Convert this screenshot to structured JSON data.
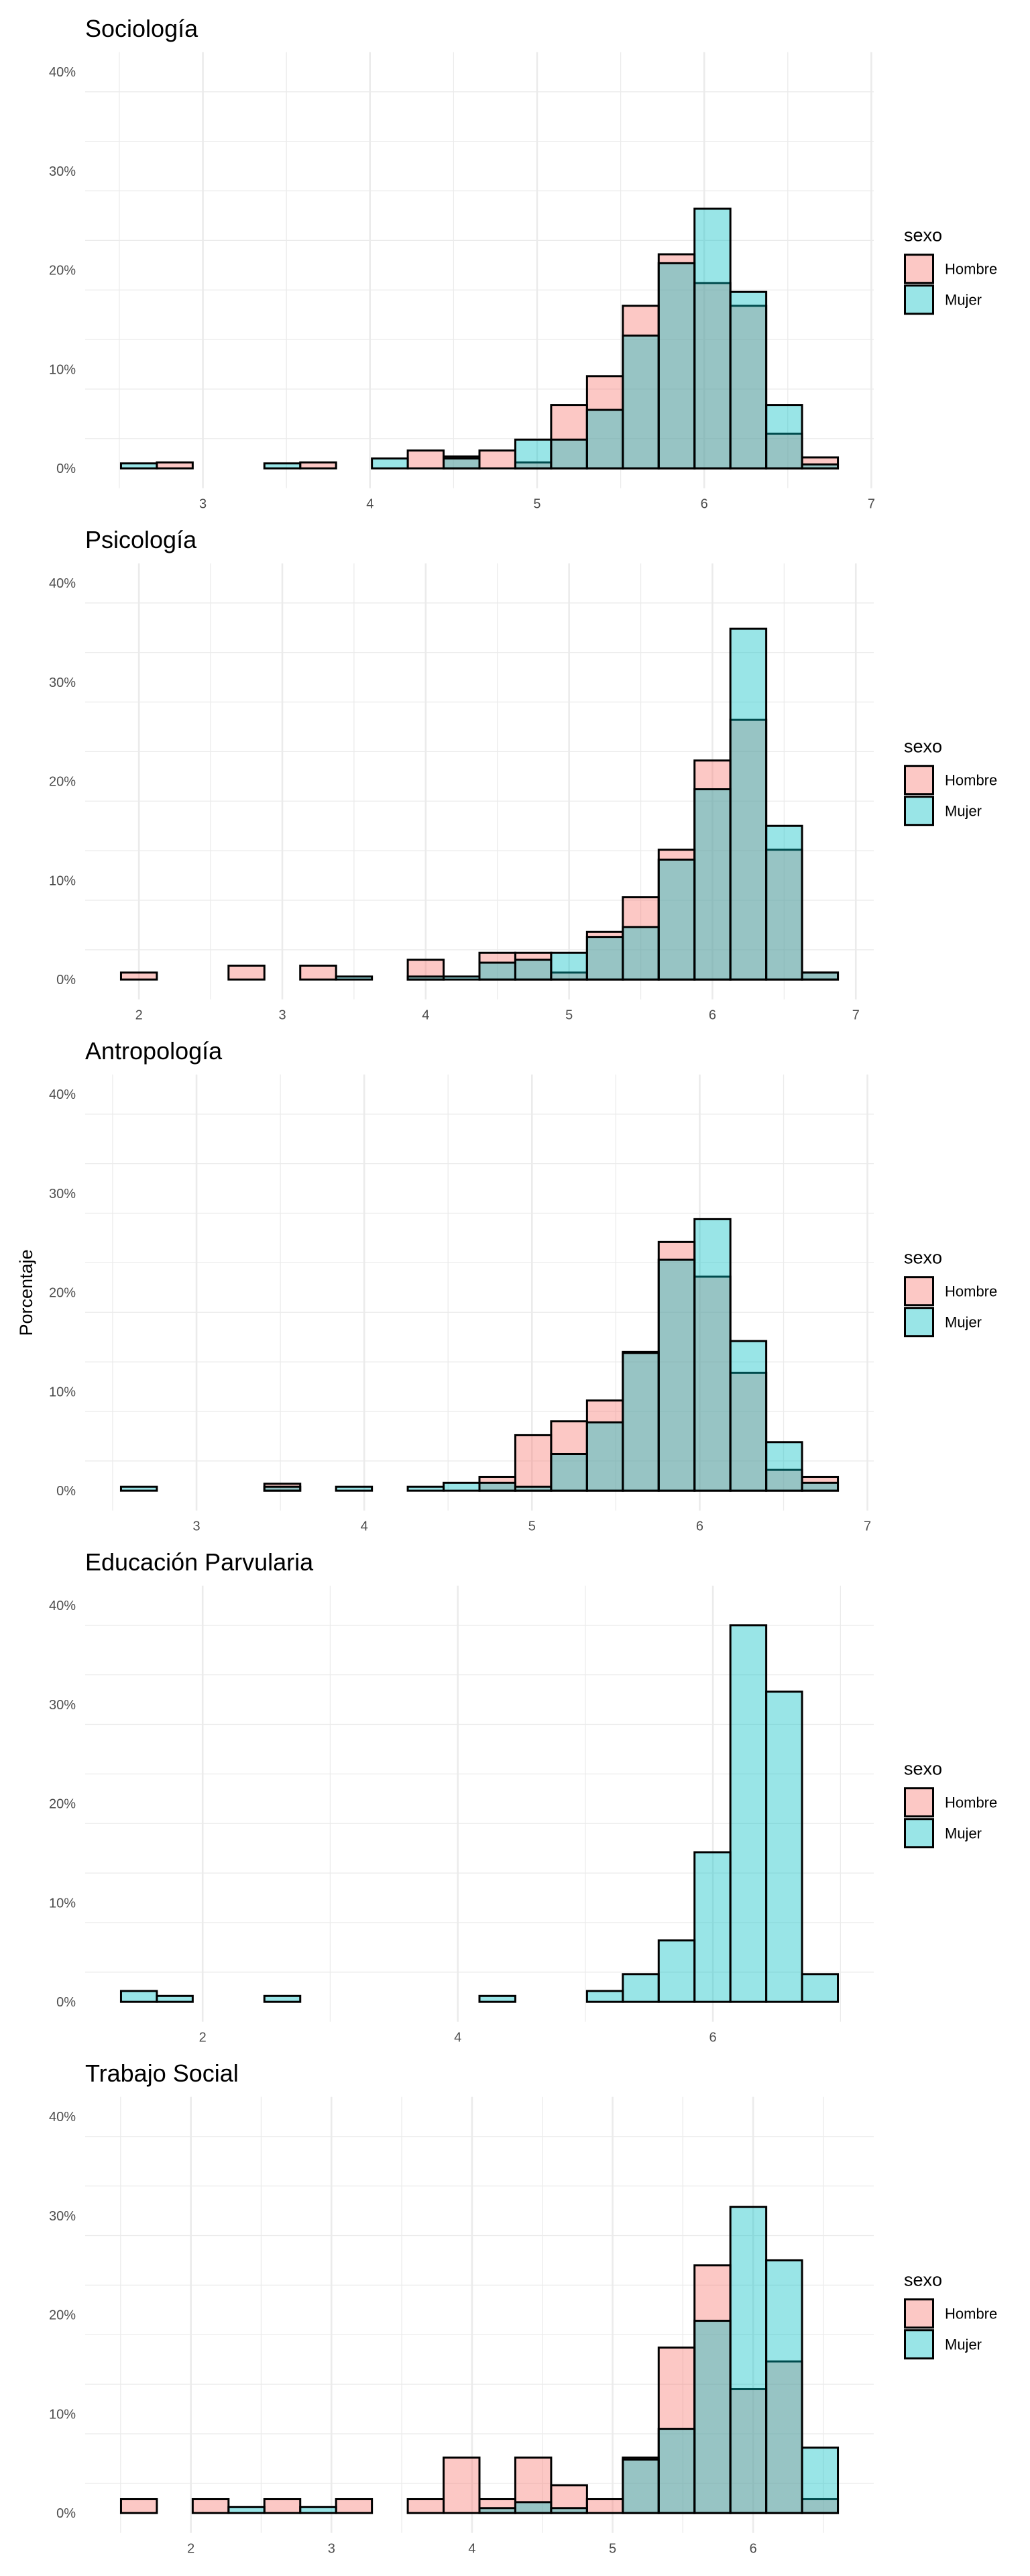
{
  "figure": {
    "ylabel": "Porcentaje"
  },
  "legend": {
    "title": "sexo",
    "items": [
      {
        "label": "Hombre",
        "color": "#F8766D",
        "alpha": 0.4
      },
      {
        "label": "Mujer",
        "color": "#00BFC4",
        "alpha": 0.4
      }
    ]
  },
  "chart_data": [
    {
      "type": "bar",
      "subtype": "overlapping histogram",
      "title": "Sociología",
      "xlabel": "",
      "ylabel": "Porcentaje",
      "bins": 20,
      "bin_start": 2.51,
      "bin_width": 0.2145,
      "x_ticks": [
        3,
        4,
        5,
        6,
        7
      ],
      "x_minor": [
        2.5,
        3.5,
        4.5,
        5.5,
        6.5
      ],
      "y_ticks": [
        0,
        10,
        20,
        30,
        40
      ],
      "y_tick_labels": [
        "0%",
        "10%",
        "20%",
        "30%",
        "40%"
      ],
      "ylim": [
        0,
        40
      ],
      "grid": true,
      "legend_position": "right",
      "series": [
        {
          "name": "Hombre",
          "values": [
            0,
            0.6,
            0,
            0,
            0,
            0.6,
            0,
            0,
            1.8,
            1.2,
            1.8,
            0.6,
            6.4,
            9.3,
            16.4,
            21.6,
            18.7,
            16.4,
            3.5,
            1.1
          ]
        },
        {
          "name": "Mujer",
          "values": [
            0.5,
            0,
            0,
            0,
            0.5,
            0,
            0,
            1.0,
            0,
            1.0,
            0,
            2.9,
            2.9,
            5.9,
            13.4,
            20.7,
            26.2,
            17.8,
            6.4,
            0.4
          ]
        }
      ]
    },
    {
      "type": "bar",
      "subtype": "overlapping histogram",
      "title": "Psicología",
      "xlabel": "",
      "ylabel": "Porcentaje",
      "bins": 20,
      "bin_start": 1.875,
      "bin_width": 0.25,
      "x_ticks": [
        2,
        3,
        4,
        5,
        6,
        7
      ],
      "x_minor": [
        2.5,
        3.5,
        4.5,
        5.5,
        6.5
      ],
      "y_ticks": [
        0,
        10,
        20,
        30,
        40
      ],
      "y_tick_labels": [
        "0%",
        "10%",
        "20%",
        "30%",
        "40%"
      ],
      "ylim": [
        0,
        40
      ],
      "grid": true,
      "legend_position": "right",
      "series": [
        {
          "name": "Hombre",
          "values": [
            0.7,
            0,
            0,
            1.4,
            0,
            1.4,
            0,
            0,
            2.0,
            0,
            2.7,
            2.7,
            0.7,
            4.8,
            8.3,
            13.1,
            22.1,
            26.2,
            13.1,
            0.7
          ]
        },
        {
          "name": "Mujer",
          "values": [
            0,
            0,
            0,
            0,
            0,
            0,
            0.3,
            0,
            0.3,
            0.3,
            1.7,
            2.0,
            2.7,
            4.3,
            5.3,
            12.1,
            19.2,
            35.4,
            15.5,
            0.7
          ]
        }
      ]
    },
    {
      "type": "bar",
      "subtype": "overlapping histogram",
      "title": "Antropología",
      "xlabel": "",
      "ylabel": "Porcentaje",
      "bins": 20,
      "bin_start": 2.55,
      "bin_width": 0.2137,
      "x_ticks": [
        3,
        4,
        5,
        6,
        7
      ],
      "x_minor": [
        2.5,
        3.5,
        4.5,
        5.5,
        6.5
      ],
      "y_ticks": [
        0,
        10,
        20,
        30,
        40
      ],
      "y_tick_labels": [
        "0%",
        "10%",
        "20%",
        "30%",
        "40%"
      ],
      "ylim": [
        0,
        40
      ],
      "grid": true,
      "legend_position": "right",
      "series": [
        {
          "name": "Hombre",
          "values": [
            0,
            0,
            0,
            0,
            0.7,
            0,
            0,
            0,
            0,
            0,
            1.4,
            5.6,
            7.0,
            9.1,
            14.0,
            25.1,
            21.6,
            11.9,
            2.1,
            1.4
          ]
        },
        {
          "name": "Mujer",
          "values": [
            0.4,
            0,
            0,
            0,
            0.4,
            0,
            0.4,
            0,
            0.4,
            0.8,
            0.8,
            0.4,
            3.7,
            6.9,
            13.9,
            23.3,
            27.4,
            15.1,
            4.9,
            0.8
          ]
        }
      ]
    },
    {
      "type": "bar",
      "subtype": "overlapping histogram",
      "title": "Educación Parvularia",
      "xlabel": "",
      "ylabel": "Porcentaje",
      "bins": 20,
      "bin_start": 1.36,
      "bin_width": 0.281,
      "x_ticks": [
        2,
        4,
        6
      ],
      "x_minor": [
        3,
        5,
        7
      ],
      "y_ticks": [
        0,
        10,
        20,
        30,
        40
      ],
      "y_tick_labels": [
        "0%",
        "10%",
        "20%",
        "30%",
        "40%"
      ],
      "ylim": [
        0,
        40
      ],
      "grid": true,
      "legend_position": "right",
      "series": [
        {
          "name": "Hombre",
          "values": [
            0,
            0,
            0,
            0,
            0,
            0,
            0,
            0,
            0,
            0,
            0,
            0,
            0,
            0,
            0,
            0,
            0,
            0,
            0,
            0
          ]
        },
        {
          "name": "Mujer",
          "values": [
            1.1,
            0.6,
            0,
            0,
            0.6,
            0,
            0,
            0,
            0,
            0,
            0.6,
            0,
            0,
            1.1,
            2.8,
            6.2,
            15.1,
            38.0,
            31.3,
            2.8
          ]
        }
      ]
    },
    {
      "type": "bar",
      "subtype": "overlapping histogram",
      "title": "Trabajo Social",
      "xlabel": "",
      "ylabel": "Porcentaje",
      "bins": 20,
      "bin_start": 1.503,
      "bin_width": 0.255,
      "x_ticks": [
        2,
        3,
        4,
        5,
        6
      ],
      "x_minor": [
        1.5,
        2.5,
        3.5,
        4.5,
        5.5,
        6.5
      ],
      "y_ticks": [
        0,
        10,
        20,
        30,
        40
      ],
      "y_tick_labels": [
        "0%",
        "10%",
        "20%",
        "30%",
        "40%"
      ],
      "ylim": [
        0,
        40
      ],
      "grid": true,
      "legend_position": "right",
      "series": [
        {
          "name": "Hombre",
          "values": [
            1.4,
            0,
            1.4,
            0,
            1.4,
            0,
            1.4,
            0,
            1.4,
            5.6,
            1.4,
            5.6,
            2.8,
            1.4,
            5.6,
            16.7,
            25.0,
            12.5,
            15.3,
            1.4
          ]
        },
        {
          "name": "Mujer",
          "values": [
            0,
            0,
            0,
            0.6,
            0,
            0.6,
            0,
            0,
            0,
            0,
            0.5,
            1.1,
            0.5,
            0,
            5.4,
            8.5,
            19.4,
            30.9,
            25.5,
            6.6
          ]
        }
      ]
    }
  ]
}
